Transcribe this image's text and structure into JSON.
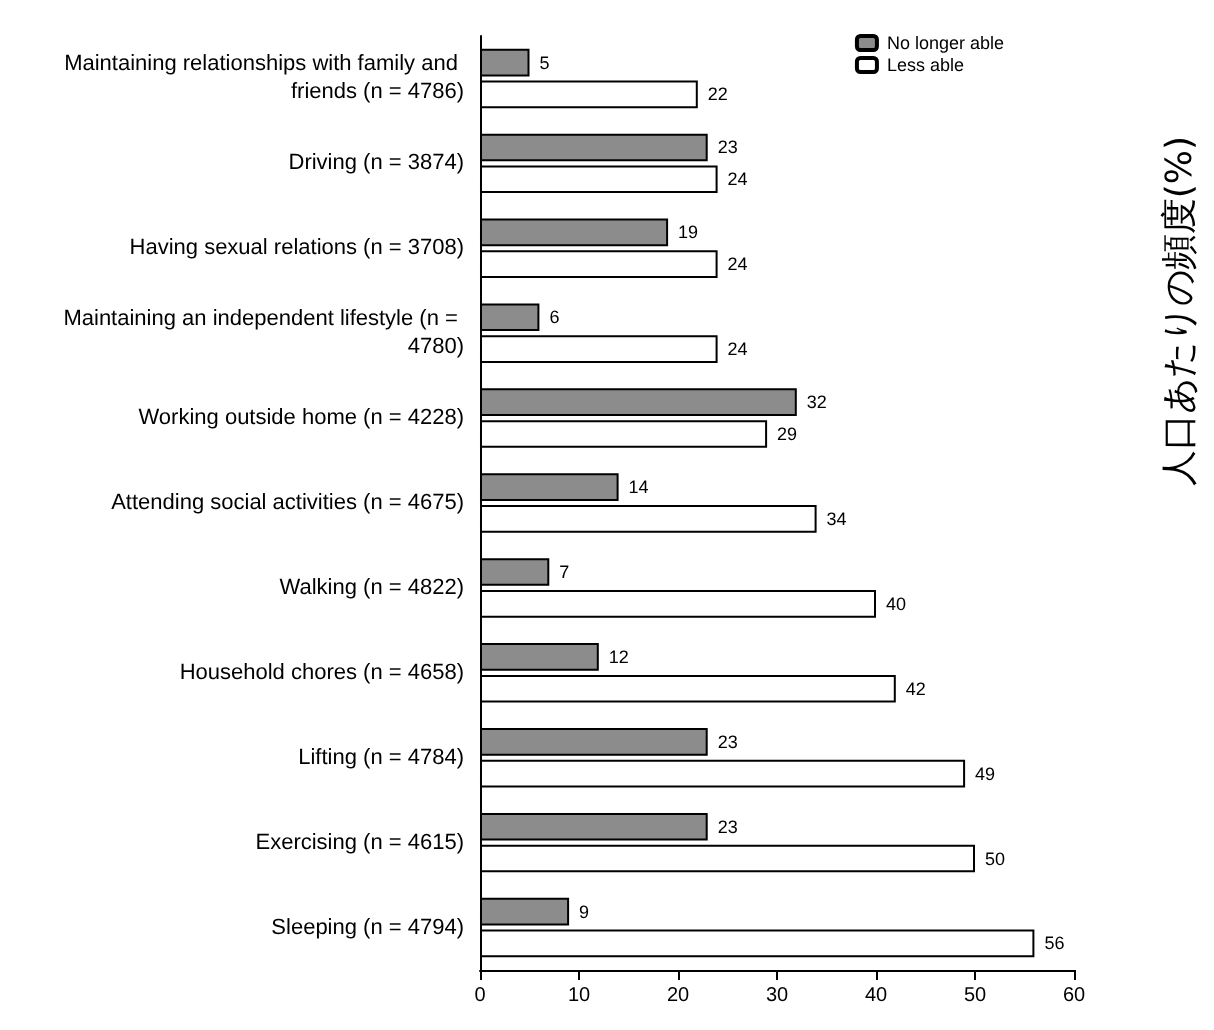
{
  "chart_data": {
    "type": "bar",
    "orientation": "horizontal",
    "categories": [
      "Maintaining relationships with family and friends (n = 4786)",
      "Driving (n = 3874)",
      "Having sexual relations (n = 3708)",
      "Maintaining an independent lifestyle (n = 4780)",
      "Working outside home (n = 4228)",
      "Attending social activities (n = 4675)",
      "Walking (n = 4822)",
      "Household chores (n = 4658)",
      "Lifting (n = 4784)",
      "Exercising (n = 4615)",
      "Sleeping (n = 4794)"
    ],
    "series": [
      {
        "name": "No longer able",
        "color": "#8c8c8c",
        "values": [
          5,
          23,
          19,
          6,
          32,
          14,
          7,
          12,
          23,
          23,
          9
        ]
      },
      {
        "name": "Less able",
        "color": "#ffffff",
        "values": [
          22,
          24,
          24,
          24,
          29,
          34,
          40,
          42,
          49,
          50,
          56
        ]
      }
    ],
    "xlim": [
      0,
      60
    ],
    "xticks": [
      0,
      10,
      20,
      30,
      40,
      50,
      60
    ],
    "grid": false,
    "legend": "top right",
    "data_labels": true,
    "annotations": [
      "人口あたりの頻度(%)"
    ]
  }
}
